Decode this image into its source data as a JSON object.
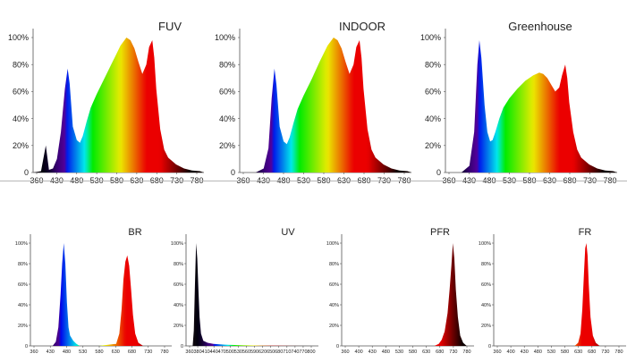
{
  "chart_data": [
    {
      "type": "area",
      "title": "FUV",
      "xlabel": "",
      "ylabel": "",
      "x_ticks": [
        360,
        430,
        480,
        530,
        580,
        630,
        680,
        730,
        780
      ],
      "y_ticks": [
        "0",
        "20%",
        "40%",
        "60%",
        "80%",
        "100%"
      ],
      "xlim": [
        360,
        790
      ],
      "ylim": [
        0,
        100
      ],
      "grid": false,
      "gradient_fill": "visible-spectrum",
      "series": [
        {
          "x": [
            360,
            380,
            392,
            400,
            410,
            420,
            430,
            440,
            447,
            452,
            460,
            470,
            478,
            485,
            495,
            505,
            520,
            540,
            560,
            580,
            595,
            605,
            615,
            625,
            635,
            645,
            652,
            660,
            665,
            670,
            680,
            690,
            700,
            720,
            740,
            760,
            780,
            790
          ],
          "values": [
            0,
            1,
            20,
            2,
            3,
            10,
            30,
            62,
            77,
            66,
            34,
            24,
            22,
            27,
            38,
            48,
            58,
            70,
            82,
            94,
            100,
            98,
            92,
            82,
            73,
            80,
            93,
            98,
            85,
            62,
            32,
            17,
            11,
            6,
            3,
            1.5,
            1,
            0
          ]
        }
      ]
    },
    {
      "type": "area",
      "title": "INDOOR",
      "xlabel": "",
      "ylabel": "",
      "x_ticks": [
        360,
        430,
        480,
        530,
        580,
        630,
        680,
        730,
        780
      ],
      "y_ticks": [
        "0",
        "20%",
        "40%",
        "60%",
        "80%",
        "100%"
      ],
      "xlim": [
        360,
        790
      ],
      "ylim": [
        0,
        100
      ],
      "grid": false,
      "gradient_fill": "visible-spectrum",
      "series": [
        {
          "x": [
            360,
            400,
            420,
            432,
            440,
            447,
            452,
            460,
            470,
            478,
            485,
            495,
            505,
            520,
            540,
            560,
            580,
            595,
            605,
            615,
            625,
            635,
            645,
            652,
            660,
            665,
            670,
            680,
            690,
            700,
            720,
            740,
            760,
            780,
            790
          ],
          "values": [
            0,
            0,
            3,
            18,
            55,
            77,
            65,
            34,
            23,
            21,
            26,
            37,
            47,
            57,
            69,
            82,
            94,
            100,
            98,
            92,
            82,
            73,
            80,
            93,
            98,
            85,
            62,
            32,
            17,
            11,
            6,
            3,
            1.5,
            1,
            0
          ]
        }
      ]
    },
    {
      "type": "area",
      "title": "Greenhouse",
      "xlabel": "",
      "ylabel": "",
      "x_ticks": [
        360,
        430,
        480,
        530,
        580,
        630,
        680,
        730,
        780
      ],
      "y_ticks": [
        "0",
        "20%",
        "40%",
        "60%",
        "80%",
        "100%"
      ],
      "xlim": [
        360,
        790
      ],
      "ylim": [
        0,
        100
      ],
      "grid": false,
      "gradient_fill": "visible-spectrum",
      "series": [
        {
          "x": [
            360,
            400,
            420,
            432,
            440,
            445,
            450,
            458,
            465,
            472,
            478,
            485,
            495,
            505,
            520,
            540,
            560,
            580,
            595,
            605,
            615,
            625,
            635,
            645,
            652,
            660,
            665,
            670,
            680,
            690,
            700,
            720,
            740,
            760,
            780,
            790
          ],
          "values": [
            0,
            0,
            5,
            30,
            80,
            98,
            85,
            50,
            30,
            23,
            24,
            30,
            40,
            48,
            55,
            62,
            68,
            72,
            74,
            73,
            70,
            65,
            60,
            63,
            72,
            80,
            70,
            52,
            30,
            17,
            11,
            6,
            3,
            1.5,
            1,
            0
          ]
        }
      ]
    },
    {
      "type": "area",
      "title": "BR",
      "xlabel": "",
      "ylabel": "",
      "x_ticks": [
        360,
        430,
        480,
        530,
        580,
        630,
        680,
        730,
        780
      ],
      "y_ticks": [
        "0",
        "20%",
        "40%",
        "60%",
        "80%",
        "100%"
      ],
      "xlim": [
        345,
        790
      ],
      "ylim": [
        0,
        100
      ],
      "grid": false,
      "gradient_fill": "visible-spectrum",
      "series": [
        {
          "x": [
            360,
            415,
            425,
            433,
            440,
            445,
            450,
            455,
            460,
            465,
            470,
            480,
            490,
            500,
            560,
            615,
            625,
            632,
            638,
            644,
            650,
            656,
            662,
            668,
            675,
            685,
            700,
            790
          ],
          "values": [
            0,
            0,
            4,
            18,
            50,
            80,
            100,
            80,
            42,
            18,
            10,
            5,
            2,
            0,
            0,
            2,
            12,
            35,
            65,
            82,
            88,
            78,
            55,
            30,
            12,
            3,
            0,
            0
          ]
        }
      ]
    },
    {
      "type": "area",
      "title": "UV",
      "xlabel": "",
      "ylabel": "",
      "x_ticks": [
        360,
        380,
        410,
        440,
        470,
        500,
        530,
        560,
        590,
        620,
        650,
        680,
        710,
        740,
        770,
        800
      ],
      "y_ticks": [
        "0",
        "20%",
        "40%",
        "60%",
        "80%",
        "100%"
      ],
      "xlim": [
        345,
        805
      ],
      "ylim": [
        0,
        100
      ],
      "grid": false,
      "gradient_fill": "visible-spectrum",
      "series": [
        {
          "x": [
            360,
            368,
            372,
            376,
            380,
            384,
            388,
            392,
            397,
            405,
            420,
            440,
            480,
            540,
            600,
            700,
            805
          ],
          "values": [
            0,
            0,
            15,
            60,
            100,
            85,
            55,
            28,
            12,
            5,
            3,
            2,
            1.2,
            0.6,
            0.3,
            0.1,
            0
          ]
        }
      ]
    },
    {
      "type": "area",
      "title": "PFR",
      "xlabel": "",
      "ylabel": "",
      "x_ticks": [
        360,
        400,
        430,
        480,
        530,
        580,
        630,
        680,
        730,
        780
      ],
      "y_ticks": [
        "0",
        "20%",
        "40%",
        "60%",
        "80%",
        "100%"
      ],
      "xlim": [
        345,
        795
      ],
      "ylim": [
        0,
        100
      ],
      "grid": false,
      "gradient_fill": "visible-spectrum",
      "series": [
        {
          "x": [
            360,
            660,
            675,
            685,
            695,
            705,
            712,
            718,
            723,
            728,
            733,
            740,
            748,
            758,
            770,
            795
          ],
          "values": [
            0,
            0,
            2,
            6,
            14,
            32,
            55,
            78,
            100,
            85,
            55,
            28,
            10,
            3,
            0,
            0
          ]
        }
      ]
    },
    {
      "type": "area",
      "title": "FR",
      "xlabel": "",
      "ylabel": "",
      "x_ticks": [
        360,
        400,
        430,
        480,
        530,
        580,
        630,
        680,
        730,
        780
      ],
      "y_ticks": [
        "0",
        "20%",
        "40%",
        "60%",
        "80%",
        "100%"
      ],
      "xlim": [
        345,
        795
      ],
      "ylim": [
        0,
        100
      ],
      "grid": false,
      "gradient_fill": "visible-spectrum",
      "series": [
        {
          "x": [
            360,
            620,
            632,
            640,
            646,
            652,
            656,
            660,
            664,
            668,
            674,
            682,
            692,
            705,
            795
          ],
          "values": [
            0,
            0,
            3,
            12,
            35,
            72,
            95,
            100,
            88,
            60,
            28,
            10,
            3,
            0,
            0
          ]
        }
      ]
    }
  ]
}
